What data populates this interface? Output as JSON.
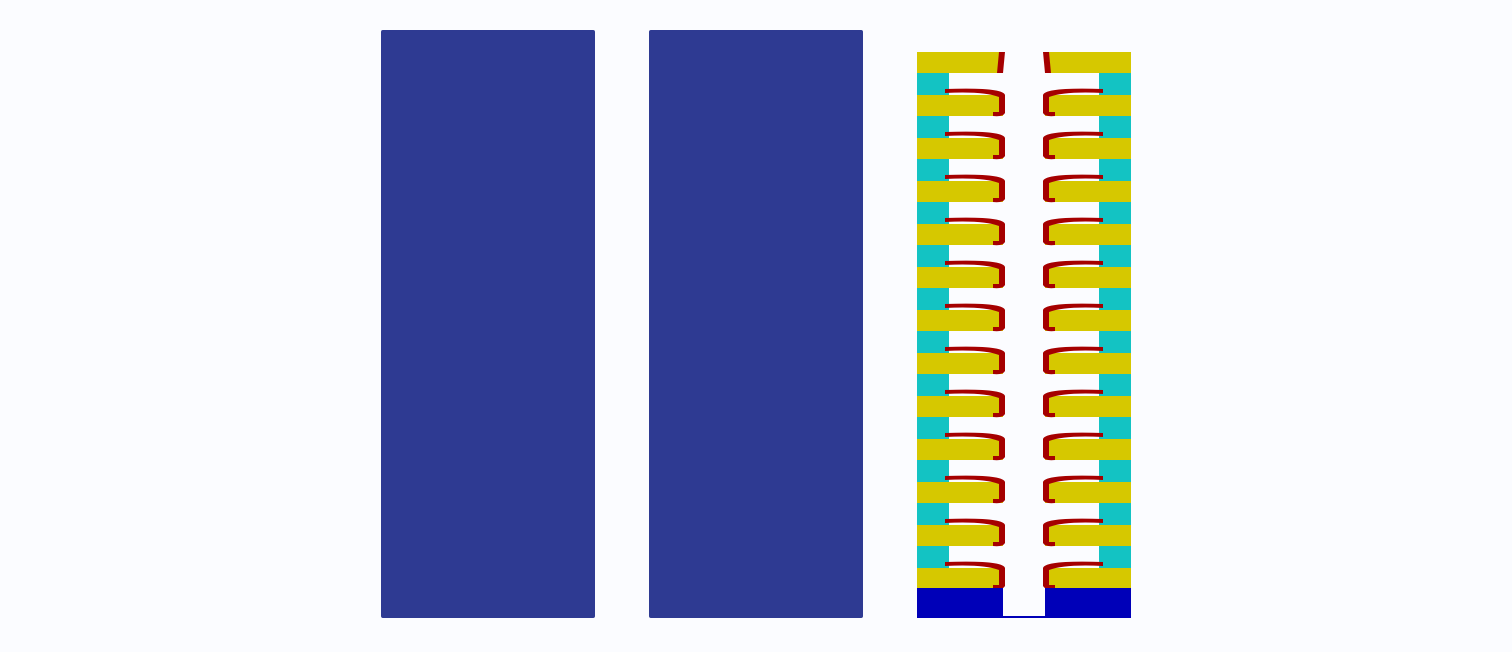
{
  "colors": {
    "background": "#fbfcff",
    "solid_block": "#2e3a92",
    "base": "#0000b8",
    "electrode": "#d6c800",
    "spacer": "#13c3c3",
    "outline": "#a50000",
    "gap": "#ffffff"
  },
  "panels": [
    {
      "name": "solid-block-left"
    },
    {
      "name": "solid-block-middle"
    },
    {
      "name": "stacked-structure"
    }
  ],
  "structure": {
    "electrode_layers": 13,
    "spacer_layers": 12,
    "has_base": true
  }
}
